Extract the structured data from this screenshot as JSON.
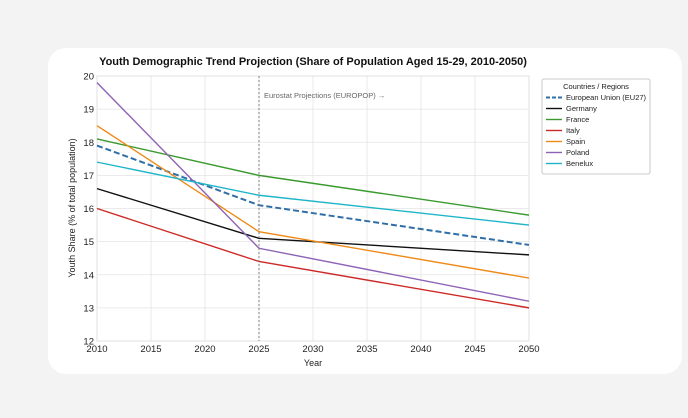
{
  "chart_data": {
    "type": "line",
    "title": "Youth Demographic Trend Projection (Share of Population Aged 15-29, 2010-2050)",
    "xlabel": "Year",
    "ylabel": "Youth Share (% of total population)",
    "x": [
      2010,
      2025,
      2050
    ],
    "xlim": [
      2010,
      2050
    ],
    "ylim": [
      12,
      20
    ],
    "xticks": [
      "2010",
      "2015",
      "2020",
      "2025",
      "2030",
      "2035",
      "2040",
      "2045",
      "2050"
    ],
    "yticks": [
      "12",
      "13",
      "14",
      "15",
      "16",
      "17",
      "18",
      "19",
      "20"
    ],
    "grid": true,
    "legend_title": "Countries / Regions",
    "legend_position": "right",
    "annotation": {
      "x": 2025,
      "text": "Eurostat Projections (EUROPOP) →"
    },
    "series": [
      {
        "name": "European Union (EU27)",
        "values": [
          17.9,
          16.1,
          14.9
        ],
        "color": "#2f6ea6",
        "dashed": true
      },
      {
        "name": "Germany",
        "values": [
          16.6,
          15.1,
          14.6
        ],
        "color": "#111111",
        "dashed": false
      },
      {
        "name": "France",
        "values": [
          18.1,
          17.0,
          15.8
        ],
        "color": "#3a9a2e",
        "dashed": false
      },
      {
        "name": "Italy",
        "values": [
          16.0,
          14.4,
          13.0
        ],
        "color": "#cc2a26",
        "dashed": false
      },
      {
        "name": "Spain",
        "values": [
          18.5,
          15.3,
          13.9
        ],
        "color": "#ef8a17",
        "dashed": false
      },
      {
        "name": "Poland",
        "values": [
          19.8,
          14.8,
          13.2
        ],
        "color": "#8e63b5",
        "dashed": false
      },
      {
        "name": "Benelux",
        "values": [
          17.4,
          16.4,
          15.5
        ],
        "color": "#1fb5c9",
        "dashed": false
      }
    ]
  }
}
